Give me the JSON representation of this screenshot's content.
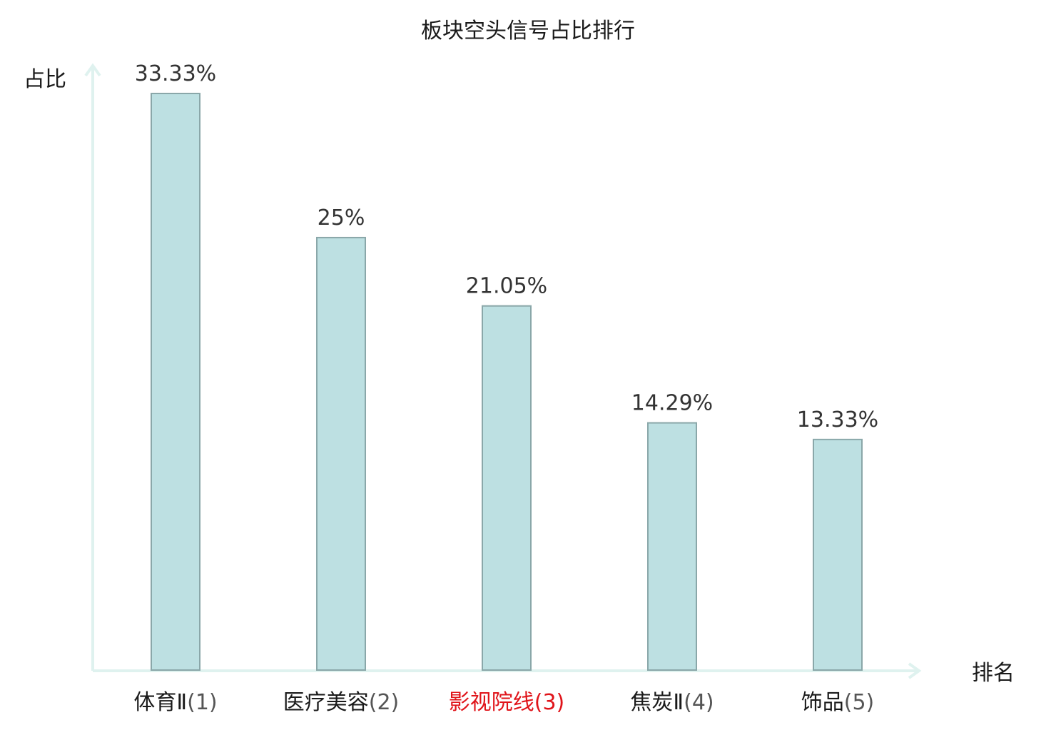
{
  "chart_data": {
    "type": "bar",
    "title": "板块空头信号占比排行",
    "ylabel": "占比",
    "xlabel": "排名",
    "categories": [
      "体育Ⅱ",
      "医疗美容",
      "影视院线",
      "焦炭Ⅱ",
      "饰品"
    ],
    "rank_labels": [
      "(1)",
      "(2)",
      "(3)",
      "(4)",
      "(5)"
    ],
    "values": [
      33.33,
      25,
      21.05,
      14.29,
      13.33
    ],
    "value_labels": [
      "33.33%",
      "25%",
      "21.05%",
      "14.29%",
      "13.33%"
    ],
    "highlight_index": 2,
    "ylim": [
      0,
      33.33
    ],
    "grid": false,
    "colors": {
      "bar_fill": "#bde0e2",
      "bar_stroke": "#8aa7a9",
      "axis": "#dff2ef",
      "text": "#1a1a1a",
      "value_text": "#333333",
      "rank_text": "#555555",
      "highlight": "#e0141a"
    }
  }
}
